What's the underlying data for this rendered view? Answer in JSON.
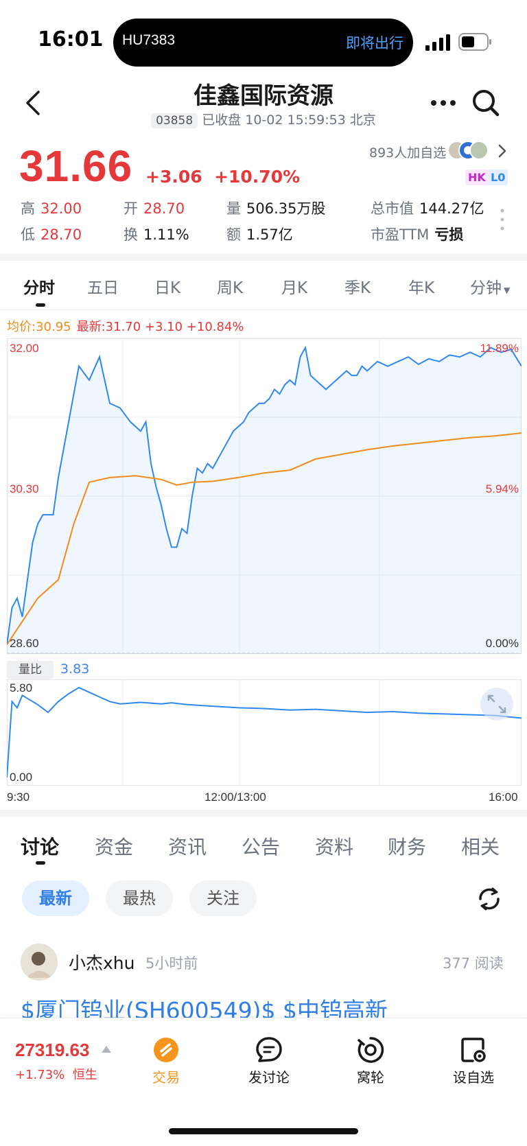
{
  "status_bar": {
    "time": "16:01",
    "island_flight": "HU7383",
    "island_status": "即将出行"
  },
  "header": {
    "stock_name": "佳鑫国际资源",
    "code": "03858",
    "status": "已收盘 10-02 15:59:53 北京"
  },
  "quote": {
    "price": "31.66",
    "change": "+3.06",
    "change_pct": "+10.70%",
    "followers": "893人加自选",
    "badge_hk": "HK",
    "badge_l0": "L0",
    "stats": {
      "high_label": "高",
      "high": "32.00",
      "open_label": "开",
      "open": "28.70",
      "volume_label": "量",
      "volume": "506.35万股",
      "mktcap_label": "总市值",
      "mktcap": "144.27亿",
      "low_label": "低",
      "low": "28.70",
      "turnover_label": "换",
      "turnover": "1.11%",
      "amount_label": "额",
      "amount": "1.57亿",
      "pe_label": "市盈TTM",
      "pe": "亏损"
    }
  },
  "chart_tabs": [
    "分时",
    "五日",
    "日K",
    "周K",
    "月K",
    "季K",
    "年K",
    "分钟"
  ],
  "legend": {
    "avg": "均价:30.95",
    "latest": "最新:31.70 +3.10 +10.84%"
  },
  "chart_data": {
    "type": "line",
    "price_axis": {
      "top": "32.00",
      "mid": "30.30",
      "bottom": "28.60"
    },
    "pct_axis": {
      "top": "11.89%",
      "mid": "5.94%",
      "bottom": "0.00%"
    },
    "ylim": [
      28.6,
      32.0
    ],
    "x_ticks": [
      "9:30",
      "12:00/13:00",
      "16:00"
    ],
    "series": [
      {
        "color": "#2f88ef",
        "x": [
          0,
          1,
          2,
          3,
          4,
          5,
          6,
          7,
          8,
          9,
          10,
          12,
          14,
          16,
          18,
          20,
          22,
          24,
          26,
          27,
          28,
          29,
          30,
          31,
          32,
          33,
          34,
          35,
          36,
          37,
          38,
          39,
          40,
          41,
          42,
          43,
          44,
          45,
          46,
          47,
          48,
          49,
          50,
          51,
          52,
          53,
          54,
          55,
          56,
          57,
          58,
          59,
          60,
          61,
          62,
          63,
          64,
          65,
          66,
          67,
          68,
          69,
          70,
          72,
          74,
          76,
          78,
          80,
          82,
          84,
          86,
          88,
          90,
          92,
          94,
          96,
          98,
          100
        ],
        "values": [
          28.7,
          29.1,
          29.2,
          29.0,
          29.4,
          29.8,
          30.0,
          30.1,
          30.1,
          30.1,
          30.5,
          31.1,
          31.7,
          31.55,
          31.8,
          31.3,
          31.25,
          31.1,
          31.0,
          31.1,
          30.65,
          30.4,
          30.2,
          29.95,
          29.75,
          29.75,
          29.95,
          29.9,
          30.3,
          30.6,
          30.55,
          30.65,
          30.6,
          30.7,
          30.8,
          30.9,
          31.0,
          31.05,
          31.1,
          31.2,
          31.25,
          31.3,
          31.3,
          31.35,
          31.45,
          31.4,
          31.5,
          31.55,
          31.5,
          31.8,
          31.9,
          31.6,
          31.55,
          31.5,
          31.45,
          31.5,
          31.55,
          31.6,
          31.65,
          31.6,
          31.6,
          31.7,
          31.65,
          31.75,
          31.7,
          31.75,
          31.8,
          31.72,
          31.78,
          31.75,
          31.82,
          31.8,
          31.85,
          31.8,
          31.9,
          31.85,
          31.88,
          31.7
        ]
      },
      {
        "color": "#f08c1a",
        "x": [
          0,
          3,
          6,
          10,
          13,
          16,
          20,
          25,
          30,
          33,
          36,
          40,
          45,
          50,
          55,
          60,
          65,
          70,
          75,
          80,
          85,
          90,
          95,
          100
        ],
        "values": [
          28.7,
          28.95,
          29.2,
          29.4,
          30.0,
          30.45,
          30.5,
          30.52,
          30.48,
          30.42,
          30.45,
          30.46,
          30.5,
          30.55,
          30.58,
          30.7,
          30.75,
          30.8,
          30.84,
          30.87,
          30.9,
          30.93,
          30.95,
          30.98
        ]
      }
    ]
  },
  "volume_ratio": {
    "label": "量比",
    "value": "3.83",
    "axis_top": "5.80",
    "axis_bottom": "0.00",
    "ylim": [
      0,
      5.8
    ],
    "x": [
      0,
      1,
      2,
      3,
      4,
      5,
      6,
      8,
      10,
      12,
      14,
      16,
      18,
      20,
      22,
      24,
      26,
      28,
      30,
      32,
      35,
      40,
      45,
      50,
      55,
      60,
      65,
      70,
      75,
      80,
      85,
      90,
      95,
      100
    ],
    "values": [
      0,
      4.9,
      4.5,
      5.3,
      5.1,
      4.9,
      4.7,
      4.2,
      4.9,
      5.4,
      5.8,
      5.5,
      5.2,
      4.9,
      4.75,
      4.8,
      4.85,
      4.8,
      4.75,
      4.82,
      4.7,
      4.6,
      4.5,
      4.45,
      4.35,
      4.4,
      4.3,
      4.2,
      4.25,
      4.15,
      4.1,
      4.05,
      4.0,
      3.83
    ]
  },
  "discussion_tabs": [
    "讨论",
    "资金",
    "资讯",
    "公告",
    "资料",
    "财务",
    "相关"
  ],
  "filters": [
    "最新",
    "最热",
    "关注"
  ],
  "post": {
    "user": "小杰xhu",
    "time": "5小时前",
    "reads": "377 阅读",
    "text": "$厦门钨业(SH600549)$ $中钨高新"
  },
  "bottom_bar": {
    "index_value": "27319.63",
    "index_change": "+1.73%",
    "index_name": "恒生",
    "items": [
      {
        "label": "交易",
        "icon": "trade-icon"
      },
      {
        "label": "发讨论",
        "icon": "chat-icon"
      },
      {
        "label": "窝轮",
        "icon": "warrant-icon"
      },
      {
        "label": "设自选",
        "icon": "watchlist-icon"
      }
    ]
  },
  "colors": {
    "up": "#e5383b",
    "price_line": "#2f88ef",
    "avg_line": "#f08c1a",
    "accent": "#2f7fe6",
    "trade_icon": "#f7941d"
  }
}
